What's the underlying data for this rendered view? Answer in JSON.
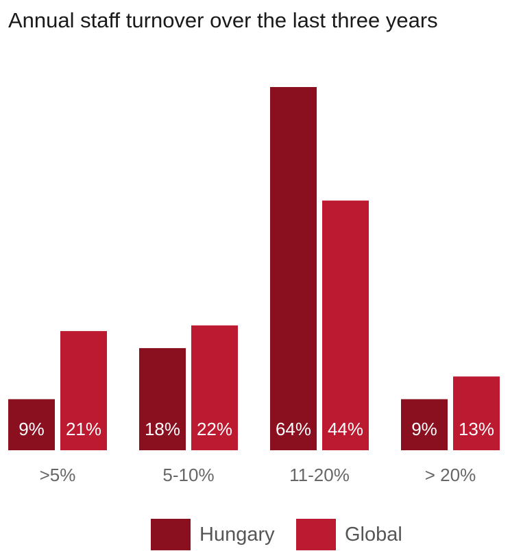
{
  "chart_data": {
    "type": "bar",
    "title": "Annual staff turnover over the last three years",
    "categories": [
      ">5%",
      "5-10%",
      "11-20%",
      "> 20%"
    ],
    "series": [
      {
        "name": "Hungary",
        "values": [
          9,
          18,
          64,
          9
        ],
        "labels": [
          "9%",
          "18%",
          "64%",
          "9%"
        ],
        "color": "#8a1020"
      },
      {
        "name": "Global",
        "values": [
          21,
          22,
          44,
          13
        ],
        "labels": [
          "21%",
          "22%",
          "44%",
          "13%"
        ],
        "color": "#bb1a30"
      }
    ],
    "xlabel": "",
    "ylabel": "",
    "ylim": [
      0,
      64
    ],
    "grid": false,
    "legend_position": "bottom"
  }
}
